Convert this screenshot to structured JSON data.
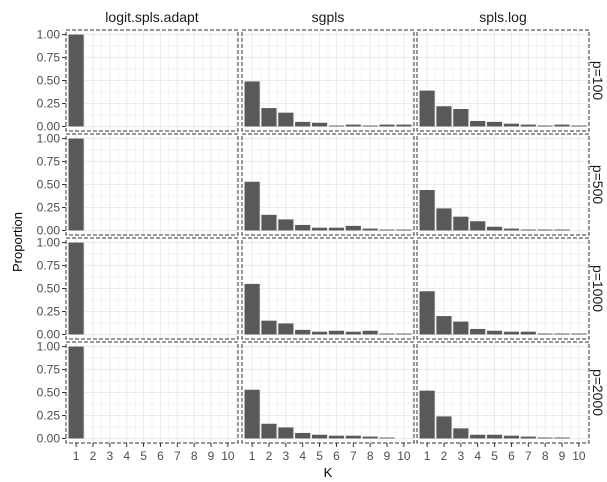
{
  "chart_data": {
    "type": "bar",
    "xlabel": "K",
    "ylabel": "Proportion",
    "ylim": [
      0,
      1
    ],
    "yticks": [
      "0.00",
      "0.25",
      "0.50",
      "0.75",
      "1.00"
    ],
    "categories": [
      "1",
      "2",
      "3",
      "4",
      "5",
      "6",
      "7",
      "8",
      "9",
      "10"
    ],
    "columns": [
      "logit.spls.adapt",
      "sgpls",
      "spls.log"
    ],
    "rows": [
      "p=100",
      "p=500",
      "p=1000",
      "p=2000"
    ],
    "grid": true,
    "bar_color": "#595959",
    "panel_background": "#ffffff",
    "grid_color": "#ebebeb",
    "panels": [
      {
        "method": "logit.spls.adapt",
        "p": "p=100",
        "values": [
          1,
          0,
          0,
          0,
          0,
          0,
          0,
          0,
          0,
          0
        ]
      },
      {
        "method": "sgpls",
        "p": "p=100",
        "values": [
          0.49,
          0.2,
          0.15,
          0.05,
          0.04,
          0.01,
          0.02,
          0.01,
          0.02,
          0.02
        ]
      },
      {
        "method": "spls.log",
        "p": "p=100",
        "values": [
          0.39,
          0.22,
          0.19,
          0.06,
          0.05,
          0.03,
          0.02,
          0.01,
          0.02,
          0.01
        ]
      },
      {
        "method": "logit.spls.adapt",
        "p": "p=500",
        "values": [
          1,
          0,
          0,
          0,
          0,
          0,
          0,
          0,
          0,
          0
        ]
      },
      {
        "method": "sgpls",
        "p": "p=500",
        "values": [
          0.53,
          0.17,
          0.12,
          0.06,
          0.03,
          0.03,
          0.05,
          0.02,
          0.01,
          0.01
        ]
      },
      {
        "method": "spls.log",
        "p": "p=500",
        "values": [
          0.44,
          0.24,
          0.15,
          0.1,
          0.04,
          0.02,
          0.01,
          0.01,
          0.01,
          0.0
        ]
      },
      {
        "method": "logit.spls.adapt",
        "p": "p=1000",
        "values": [
          1,
          0,
          0,
          0,
          0,
          0,
          0,
          0,
          0,
          0
        ]
      },
      {
        "method": "sgpls",
        "p": "p=1000",
        "values": [
          0.55,
          0.15,
          0.12,
          0.05,
          0.03,
          0.04,
          0.03,
          0.04,
          0.01,
          0.01
        ]
      },
      {
        "method": "spls.log",
        "p": "p=1000",
        "values": [
          0.47,
          0.2,
          0.14,
          0.06,
          0.04,
          0.03,
          0.03,
          0.01,
          0.01,
          0.01
        ]
      },
      {
        "method": "logit.spls.adapt",
        "p": "p=2000",
        "values": [
          1,
          0,
          0,
          0,
          0,
          0,
          0,
          0,
          0,
          0
        ]
      },
      {
        "method": "sgpls",
        "p": "p=2000",
        "values": [
          0.53,
          0.16,
          0.12,
          0.06,
          0.04,
          0.03,
          0.03,
          0.02,
          0.01,
          0.0
        ]
      },
      {
        "method": "spls.log",
        "p": "p=2000",
        "values": [
          0.52,
          0.24,
          0.11,
          0.04,
          0.04,
          0.03,
          0.02,
          0.01,
          0.01,
          0.0
        ]
      }
    ]
  }
}
